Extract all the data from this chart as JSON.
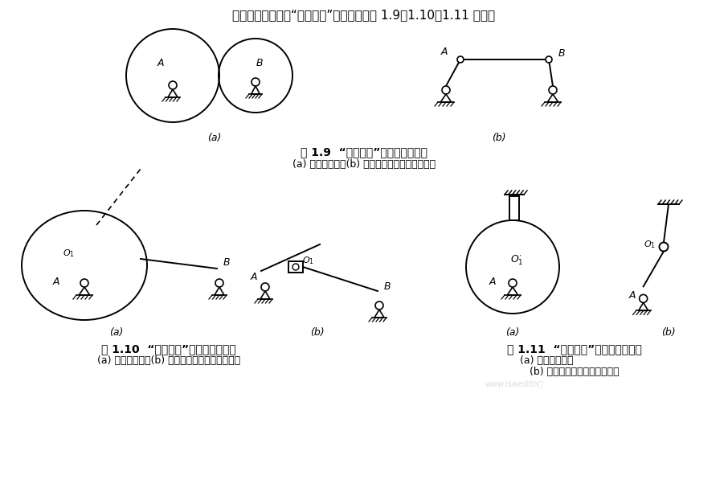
{
  "bg": "#ffffff",
  "lc": "#000000",
  "title": "机构中几种常见的“高副低代”方法分别如图 1.9、1.10、1.11 所示。",
  "cap19": "图 1.9  “高副低代”的常见情况之一",
  "sub19": "(a) 原高副结构；(b) 用低副替代高副后的结构。",
  "cap110": "图 1.10  “高副低代”的常见情况之二",
  "sub110": "(a) 原高副结构；(b) 用低副替代高副后的结构。",
  "cap111": "图 1.11  “高副低代”的常见情况之三",
  "sub111a": "(a) 原高副结构；",
  "sub111b": "(b) 用低副替代高副后的结构。",
  "watermark": "www.iswedith证"
}
